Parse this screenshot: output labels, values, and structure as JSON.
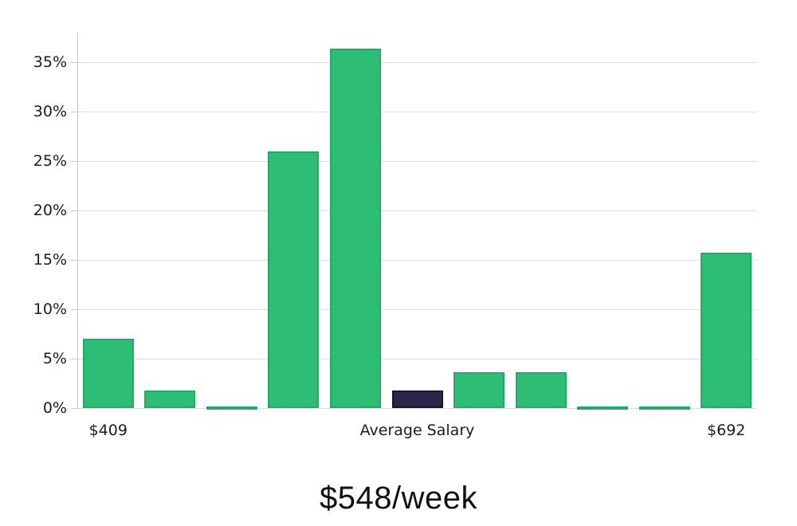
{
  "chart_data": {
    "type": "bar",
    "title": "$548/week",
    "values": [
      7.0,
      1.8,
      0.15,
      26.0,
      36.4,
      1.8,
      3.6,
      3.6,
      0.15,
      0.15,
      15.7
    ],
    "bar_count": 11,
    "highlighted_bar_index": 5,
    "x_tick_labels": [
      {
        "position": 0,
        "label": "$409"
      },
      {
        "position": 5,
        "label": "Average Salary"
      },
      {
        "position": 10,
        "label": "$692"
      }
    ],
    "y_ticks": [
      0,
      5,
      10,
      15,
      20,
      25,
      30,
      35
    ],
    "y_tick_suffix": "%",
    "ylim": [
      0,
      38
    ],
    "grid": "horizontal",
    "legend": "none",
    "xlabel": "",
    "ylabel": ""
  },
  "colors": {
    "bar_fill": "#2dbd75",
    "bar_border": "#21ab66",
    "highlight_fill": "#2b2549",
    "highlight_border": "#171430",
    "gridline": "#dddddd",
    "axis_line": "#c9c9c9",
    "tick_text": "#1c1c1c",
    "title_text": "#111111",
    "background": "#ffffff"
  }
}
